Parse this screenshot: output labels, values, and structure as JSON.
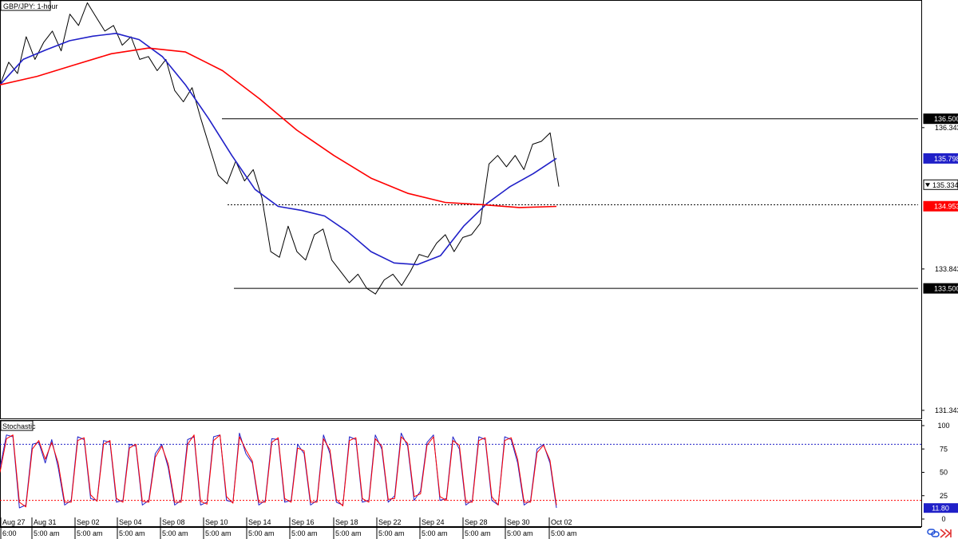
{
  "chart_data": [
    {
      "type": "line",
      "title": "GBP/JPY: 1-hour",
      "y_axis_labels": [
        "136.343",
        "133.843",
        "131.343"
      ],
      "x_labels": [
        "Aug 27",
        "Aug 31",
        "Sep 02",
        "Sep 04",
        "Sep 08",
        "Sep 10",
        "Sep 14",
        "Sep 16",
        "Sep 18",
        "Sep 22",
        "Sep 24",
        "Sep 28",
        "Sep 30",
        "Oct 02"
      ],
      "x_sub_labels": [
        "6:00",
        "5:00 am",
        "5:00 am",
        "5:00 am",
        "5:00 am",
        "5:00 am",
        "5:00 am",
        "5:00 am",
        "5:00 am",
        "5:00 am",
        "5:00 am",
        "5:00 am",
        "5:00 am",
        "5:00 am"
      ],
      "ylim": [
        131.2,
        138.6
      ],
      "grid": false,
      "levels": [
        {
          "label": "136.500",
          "value": 136.5,
          "style": "solid",
          "color": "#000000"
        },
        {
          "label": "133.500",
          "value": 133.5,
          "style": "solid",
          "color": "#000000"
        },
        {
          "value": 134.98,
          "style": "dotted",
          "color": "#000000"
        }
      ],
      "price_tags": [
        {
          "label": "136.500",
          "value": 136.5,
          "bg": "#000000"
        },
        {
          "label": "135.798",
          "value": 135.798,
          "bg": "#2020c8"
        },
        {
          "label": "135.334",
          "value": 135.334,
          "bg": "#ffffff"
        },
        {
          "label": "134.953",
          "value": 134.953,
          "bg": "#ff0000"
        },
        {
          "label": "133.500",
          "value": 133.5,
          "bg": "#000000"
        }
      ],
      "series": [
        {
          "color": "#000000",
          "values": [
            137.1,
            137.5,
            137.3,
            137.95,
            137.55,
            137.85,
            138.05,
            137.7,
            138.35,
            138.15,
            138.55,
            138.3,
            138.05,
            138.15,
            137.8,
            137.95,
            137.55,
            137.6,
            137.35,
            137.55,
            137.0,
            136.8,
            137.05,
            136.5,
            136.0,
            135.5,
            135.35,
            135.75,
            135.4,
            135.6,
            135.1,
            134.15,
            134.05,
            134.6,
            134.15,
            134.0,
            134.45,
            134.55,
            134.0,
            133.8,
            133.6,
            133.75,
            133.5,
            133.4,
            133.65,
            133.75,
            133.55,
            133.8,
            134.1,
            134.05,
            134.3,
            134.45,
            134.15,
            134.4,
            134.45,
            134.65,
            135.7,
            135.85,
            135.65,
            135.85,
            135.6,
            136.05,
            136.1,
            136.25,
            135.3
          ]
        },
        {
          "color": "#2020c8",
          "values": [
            137.1,
            137.55,
            137.72,
            137.88,
            137.96,
            138.01,
            137.9,
            137.6,
            137.1,
            136.5,
            135.85,
            135.25,
            134.95,
            134.88,
            134.78,
            134.5,
            134.15,
            133.95,
            133.92,
            134.08,
            134.6,
            135.0,
            135.3,
            135.53,
            135.8
          ]
        },
        {
          "color": "#ff0000",
          "values": [
            137.1,
            137.25,
            137.45,
            137.65,
            137.75,
            137.68,
            137.35,
            136.85,
            136.3,
            135.85,
            135.45,
            135.18,
            135.02,
            134.98,
            134.93,
            134.95
          ]
        }
      ]
    },
    {
      "type": "line",
      "title": "Stochastic",
      "y_axis_labels": [
        "100",
        "75",
        "50",
        "25",
        "0"
      ],
      "ylim": [
        0,
        100
      ],
      "levels": [
        {
          "value": 80,
          "style": "dotted",
          "color": "#2020c8"
        },
        {
          "value": 20,
          "style": "dotted",
          "color": "#ff0000"
        }
      ],
      "current_label": "11.80",
      "series": [
        {
          "color": "#2020c8",
          "values": [
            55,
            90,
            88,
            12,
            15,
            80,
            82,
            60,
            85,
            55,
            15,
            20,
            88,
            85,
            22,
            20,
            84,
            82,
            18,
            20,
            80,
            78,
            15,
            20,
            70,
            80,
            55,
            15,
            20,
            85,
            88,
            15,
            18,
            88,
            90,
            20,
            18,
            92,
            70,
            60,
            15,
            20,
            86,
            85,
            18,
            20,
            80,
            70,
            15,
            20,
            90,
            70,
            18,
            15,
            88,
            85,
            18,
            20,
            90,
            75,
            18,
            25,
            92,
            78,
            20,
            30,
            82,
            90,
            20,
            22,
            88,
            75,
            15,
            20,
            88,
            85,
            20,
            15,
            88,
            85,
            60,
            15,
            20,
            75,
            80,
            60,
            12
          ]
        },
        {
          "color": "#ff0000",
          "values": [
            50,
            86,
            90,
            18,
            13,
            75,
            84,
            64,
            82,
            60,
            18,
            18,
            84,
            87,
            26,
            19,
            80,
            84,
            22,
            18,
            76,
            80,
            19,
            18,
            66,
            78,
            59,
            18,
            18,
            80,
            90,
            19,
            16,
            84,
            90,
            24,
            17,
            88,
            74,
            62,
            18,
            18,
            82,
            87,
            22,
            18,
            76,
            73,
            18,
            18,
            86,
            74,
            21,
            14,
            84,
            87,
            22,
            18,
            86,
            78,
            21,
            22,
            88,
            81,
            24,
            27,
            79,
            88,
            24,
            20,
            84,
            79,
            18,
            18,
            84,
            87,
            24,
            15,
            84,
            87,
            64,
            18,
            18,
            71,
            79,
            63,
            15
          ]
        }
      ]
    }
  ]
}
